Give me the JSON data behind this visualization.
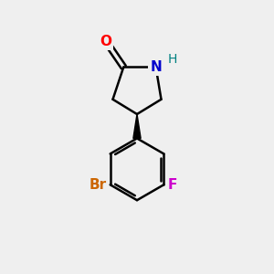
{
  "background_color": "#efefef",
  "bond_color": "#000000",
  "line_width": 1.8,
  "O_color": "#ff0000",
  "N_color": "#0000cc",
  "H_color": "#008080",
  "Br_color": "#cc6600",
  "F_color": "#cc00cc",
  "font_size_atoms": 11,
  "xlim": [
    0,
    10
  ],
  "ylim": [
    0,
    10
  ]
}
